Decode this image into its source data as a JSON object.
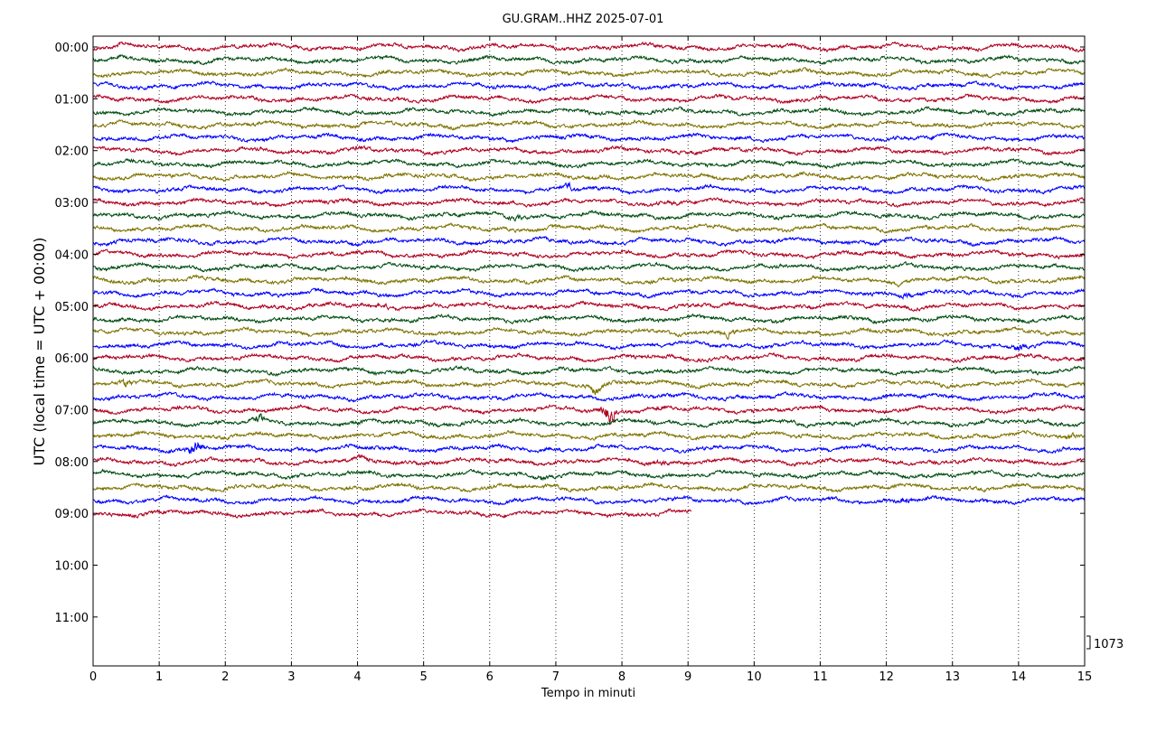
{
  "chart_data": {
    "type": "line",
    "title": "GU.GRAM..HHZ 2025-07-01",
    "xlabel": "Tempo in minuti",
    "ylabel": "UTC (local time = UTC + 00:00)",
    "xlim": [
      0,
      15
    ],
    "x_ticks": [
      "0",
      "1",
      "2",
      "3",
      "4",
      "5",
      "6",
      "7",
      "8",
      "9",
      "10",
      "11",
      "12",
      "13",
      "14",
      "15"
    ],
    "y_ticks": [
      "00:00",
      "01:00",
      "02:00",
      "03:00",
      "04:00",
      "05:00",
      "06:00",
      "07:00",
      "08:00",
      "09:00",
      "10:00",
      "11:00"
    ],
    "trace_interval_minutes": 15,
    "traces_recorded": 37,
    "last_trace_end_minute": 9.05,
    "trace_colors": [
      "#b00020",
      "#004d10",
      "#7f7300",
      "#0000ff"
    ],
    "grid": "vertical dotted lines at each minute",
    "scale_label": "1073",
    "events": [
      {
        "trace": 0,
        "minute": 0.4,
        "strength": 1.4
      },
      {
        "trace": 7,
        "minute": 12.7,
        "strength": 1.3
      },
      {
        "trace": 8,
        "minute": 4.0,
        "strength": 1.6
      },
      {
        "trace": 11,
        "minute": 7.2,
        "strength": 2.2
      },
      {
        "trace": 11,
        "minute": 14.3,
        "strength": 1.4
      },
      {
        "trace": 12,
        "minute": 8.8,
        "strength": 1.3
      },
      {
        "trace": 13,
        "minute": 6.4,
        "strength": 1.8
      },
      {
        "trace": 18,
        "minute": 12.2,
        "strength": 1.4
      },
      {
        "trace": 19,
        "minute": 12.3,
        "strength": 1.5
      },
      {
        "trace": 20,
        "minute": 4.4,
        "strength": 1.6
      },
      {
        "trace": 22,
        "minute": 9.6,
        "strength": 2.0
      },
      {
        "trace": 23,
        "minute": 14.0,
        "strength": 2.4
      },
      {
        "trace": 26,
        "minute": 0.5,
        "strength": 2.6
      },
      {
        "trace": 26,
        "minute": 7.6,
        "strength": 2.8
      },
      {
        "trace": 28,
        "minute": 7.8,
        "strength": 5.5
      },
      {
        "trace": 28,
        "minute": 8.6,
        "strength": 1.6
      },
      {
        "trace": 29,
        "minute": 2.5,
        "strength": 2.6
      },
      {
        "trace": 29,
        "minute": 4.0,
        "strength": 1.8
      },
      {
        "trace": 30,
        "minute": 14.8,
        "strength": 1.8
      },
      {
        "trace": 31,
        "minute": 1.55,
        "strength": 4.0
      },
      {
        "trace": 32,
        "minute": 4.1,
        "strength": 2.0
      },
      {
        "trace": 32,
        "minute": 8.6,
        "strength": 1.6
      },
      {
        "trace": 33,
        "minute": 6.8,
        "strength": 1.6
      },
      {
        "trace": 35,
        "minute": 12.3,
        "strength": 1.8
      }
    ]
  }
}
